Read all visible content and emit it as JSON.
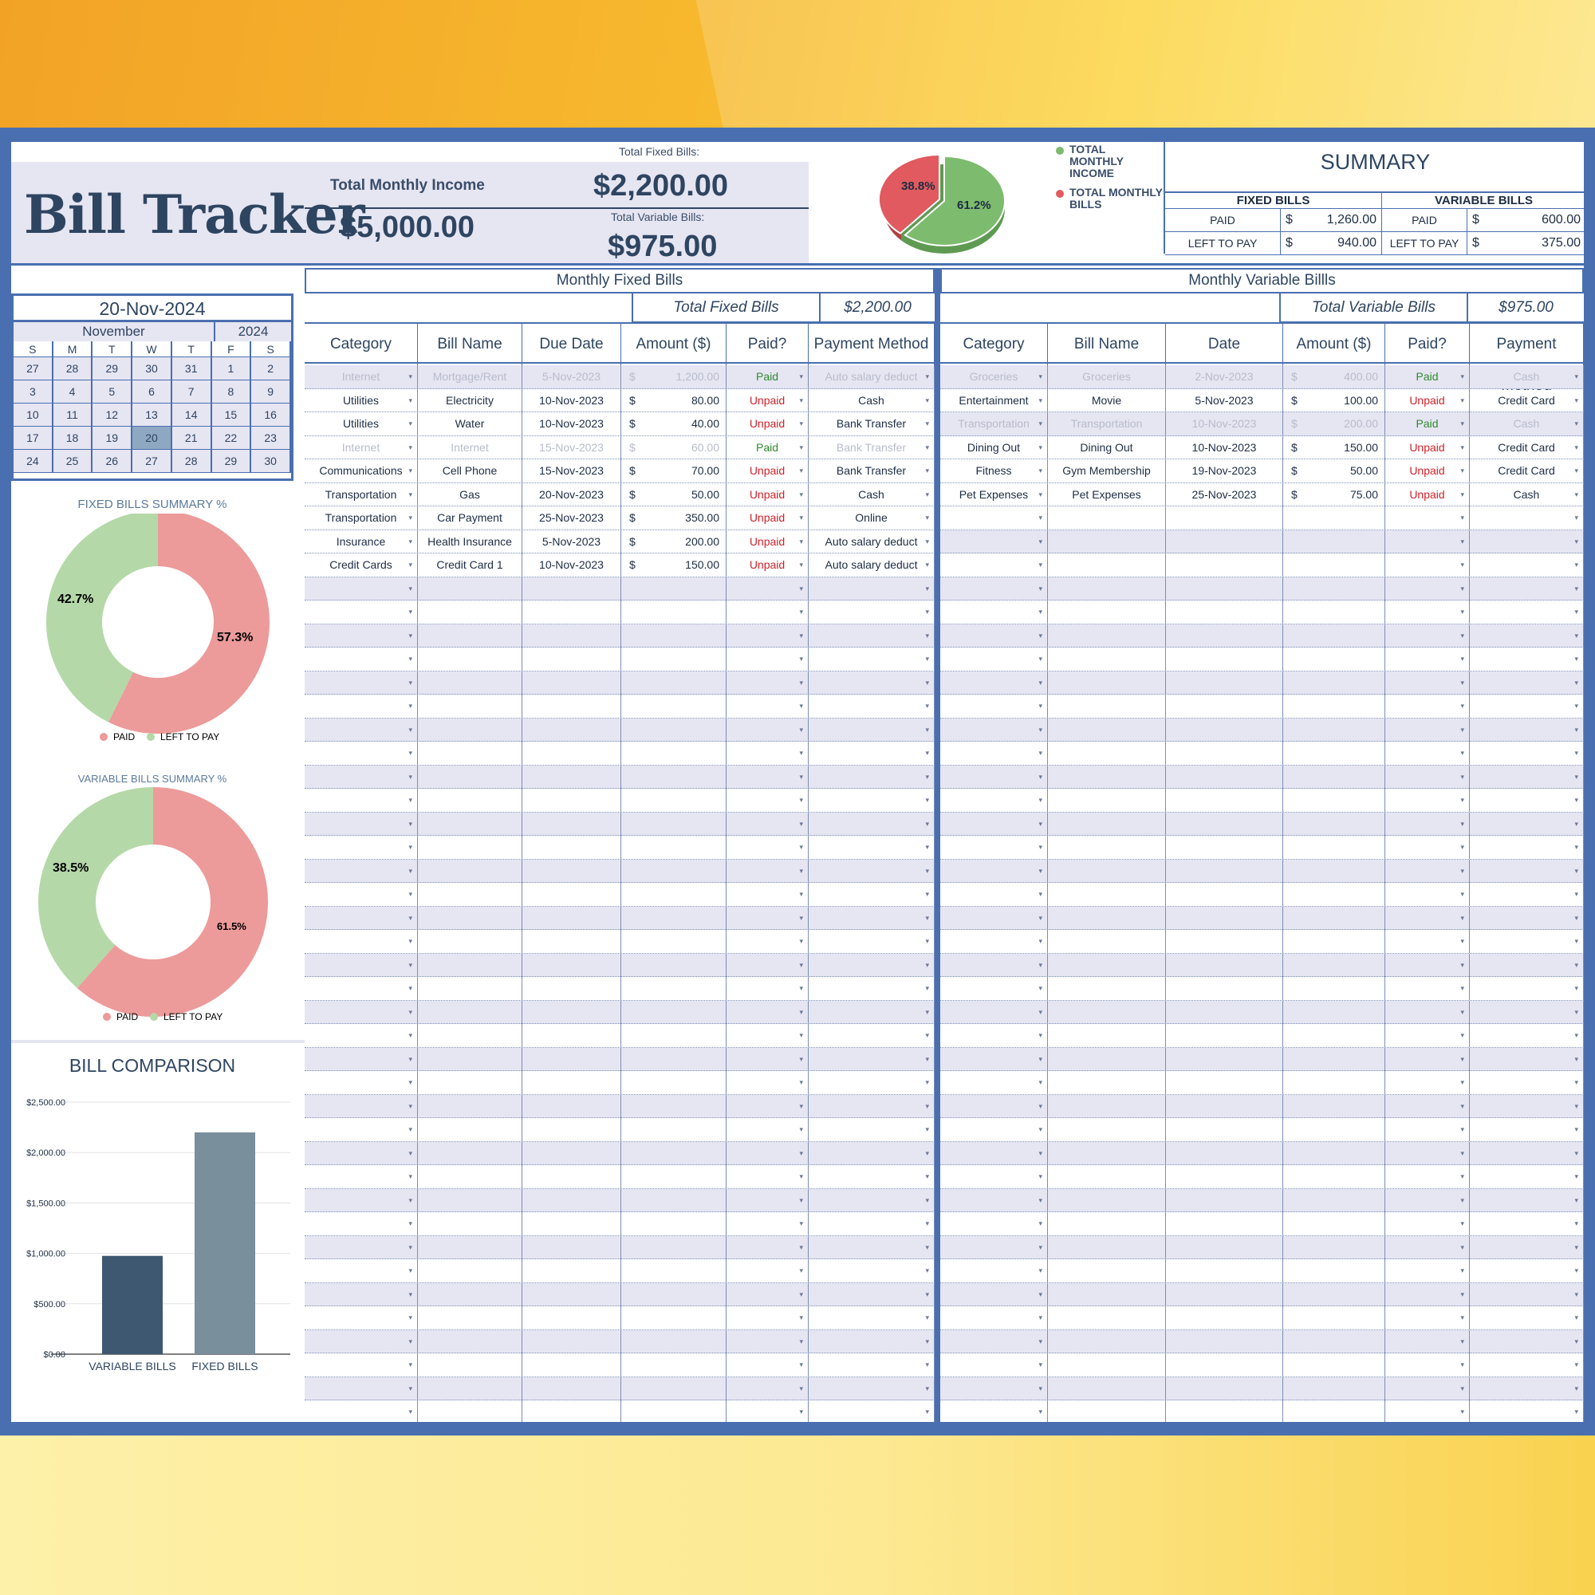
{
  "app": {
    "title": "Bill Tracker"
  },
  "header": {
    "income_label": "Total Monthly Income",
    "income_value": "$5,000.00",
    "fixed_label": "Total Fixed Bills:",
    "fixed_value": "$2,200.00",
    "variable_label": "Total Variable Bills:",
    "variable_value": "$975.00"
  },
  "pie": {
    "legend_income": "TOTAL MONTHLY INCOME",
    "legend_bills": "TOTAL MONTHLY BILLS",
    "slices": [
      {
        "label": "61.2%",
        "value": 61.2,
        "color": "#7dbb6e"
      },
      {
        "label": "38.8%",
        "value": 38.8,
        "color": "#e05a5f"
      }
    ]
  },
  "summary": {
    "title": "SUMMARY",
    "fixed_head": "FIXED BILLS",
    "variable_head": "VARIABLE BILLS",
    "paid_label": "PAID",
    "left_label": "LEFT TO PAY",
    "currency": "$",
    "fixed_paid": "1,260.00",
    "fixed_left": "940.00",
    "variable_paid": "600.00",
    "variable_left": "375.00"
  },
  "calendar": {
    "date": "20-Nov-2024",
    "month": "November",
    "year": "2024",
    "dow": [
      "S",
      "M",
      "T",
      "W",
      "T",
      "F",
      "S"
    ],
    "weeks": [
      [
        "27",
        "28",
        "29",
        "30",
        "31",
        "1",
        "2"
      ],
      [
        "3",
        "4",
        "5",
        "6",
        "7",
        "8",
        "9"
      ],
      [
        "10",
        "11",
        "12",
        "13",
        "14",
        "15",
        "16"
      ],
      [
        "17",
        "18",
        "19",
        "20",
        "21",
        "22",
        "23"
      ],
      [
        "24",
        "25",
        "26",
        "27",
        "28",
        "29",
        "30"
      ]
    ],
    "today": "20"
  },
  "fixed_donut": {
    "title": "FIXED BILLS SUMMARY %",
    "paid_pct": 57.3,
    "left_pct": 42.7,
    "paid_label": "57.3%",
    "left_label": "42.7%",
    "legend_paid": "PAID",
    "legend_left": "LEFT TO PAY",
    "colors": {
      "paid": "#ec9a9a",
      "left": "#b5d8a8"
    }
  },
  "variable_donut": {
    "title": "VARIABLE BILLS SUMMARY %",
    "paid_pct": 61.5,
    "left_pct": 38.5,
    "paid_label": "61.5%",
    "left_label": "38.5%",
    "legend_paid": "PAID",
    "legend_left": "LEFT TO PAY",
    "colors": {
      "paid": "#ec9a9a",
      "left": "#b5d8a8"
    }
  },
  "chart_data": {
    "type": "bar",
    "title": "BILL COMPARISON",
    "categories": [
      "VARIABLE BILLS",
      "FIXED BILLS"
    ],
    "values": [
      975,
      2200
    ],
    "colors": [
      "#3d5870",
      "#7a8f9c"
    ],
    "ylim": [
      0,
      2500
    ],
    "yticks": [
      0,
      500,
      1000,
      1500,
      2000,
      2500
    ],
    "ytick_labels": [
      "$0.00",
      "$500.00",
      "$1,000.00",
      "$1,500.00",
      "$2,000.00",
      "$2,500.00"
    ],
    "grid": true
  },
  "fixed_table": {
    "heading": "Monthly Fixed Bills",
    "total_label": "Total Fixed Bills",
    "total_value": "$2,200.00",
    "columns": [
      "Category",
      "Bill Name",
      "Due Date",
      "Amount ($)",
      "Paid?",
      "Payment Method"
    ],
    "rows": [
      {
        "category": "Internet",
        "name": "Mortgage/Rent",
        "date": "5-Nov-2023",
        "amount": "1,200.00",
        "paid": "Paid",
        "method": "Auto salary deduct",
        "dim": true
      },
      {
        "category": "Utilities",
        "name": "Electricity",
        "date": "10-Nov-2023",
        "amount": "80.00",
        "paid": "Unpaid",
        "method": "Cash",
        "dim": false
      },
      {
        "category": "Utilities",
        "name": "Water",
        "date": "10-Nov-2023",
        "amount": "40.00",
        "paid": "Unpaid",
        "method": "Bank Transfer",
        "dim": false
      },
      {
        "category": "Internet",
        "name": "Internet",
        "date": "15-Nov-2023",
        "amount": "60.00",
        "paid": "Paid",
        "method": "Bank Transfer",
        "dim": true
      },
      {
        "category": "Communications",
        "name": "Cell Phone",
        "date": "15-Nov-2023",
        "amount": "70.00",
        "paid": "Unpaid",
        "method": "Bank Transfer",
        "dim": false
      },
      {
        "category": "Transportation",
        "name": "Gas",
        "date": "20-Nov-2023",
        "amount": "50.00",
        "paid": "Unpaid",
        "method": "Cash",
        "dim": false
      },
      {
        "category": "Transportation",
        "name": "Car Payment",
        "date": "25-Nov-2023",
        "amount": "350.00",
        "paid": "Unpaid",
        "method": "Online",
        "dim": false
      },
      {
        "category": "Insurance",
        "name": "Health Insurance",
        "date": "5-Nov-2023",
        "amount": "200.00",
        "paid": "Unpaid",
        "method": "Auto salary deduct",
        "dim": false
      },
      {
        "category": "Credit Cards",
        "name": "Credit Card 1",
        "date": "10-Nov-2023",
        "amount": "150.00",
        "paid": "Unpaid",
        "method": "Auto salary deduct",
        "dim": false
      }
    ]
  },
  "variable_table": {
    "heading": "Monthly Variable Billls",
    "total_label": "Total Variable Bills",
    "total_value": "$975.00",
    "columns": [
      "Category",
      "Bill Name",
      "Date",
      "Amount ($)",
      "Paid?",
      "Payment Method"
    ],
    "rows": [
      {
        "category": "Groceries",
        "name": "Groceries",
        "date": "2-Nov-2023",
        "amount": "400.00",
        "paid": "Paid",
        "method": "Cash",
        "dim": true
      },
      {
        "category": "Entertainment",
        "name": "Movie",
        "date": "5-Nov-2023",
        "amount": "100.00",
        "paid": "Unpaid",
        "method": "Credit Card",
        "dim": false
      },
      {
        "category": "Transportation",
        "name": "Transportation",
        "date": "10-Nov-2023",
        "amount": "200.00",
        "paid": "Paid",
        "method": "Cash",
        "dim": true
      },
      {
        "category": "Dining Out",
        "name": "Dining Out",
        "date": "10-Nov-2023",
        "amount": "150.00",
        "paid": "Unpaid",
        "method": "Credit Card",
        "dim": false
      },
      {
        "category": "Fitness",
        "name": "Gym Membership",
        "date": "19-Nov-2023",
        "amount": "50.00",
        "paid": "Unpaid",
        "method": "Credit Card",
        "dim": false
      },
      {
        "category": "Pet Expenses",
        "name": "Pet Expenses",
        "date": "25-Nov-2023",
        "amount": "75.00",
        "paid": "Unpaid",
        "method": "Cash",
        "dim": false
      }
    ]
  },
  "currency_symbol": "$",
  "dropdown_glyph": "▾"
}
